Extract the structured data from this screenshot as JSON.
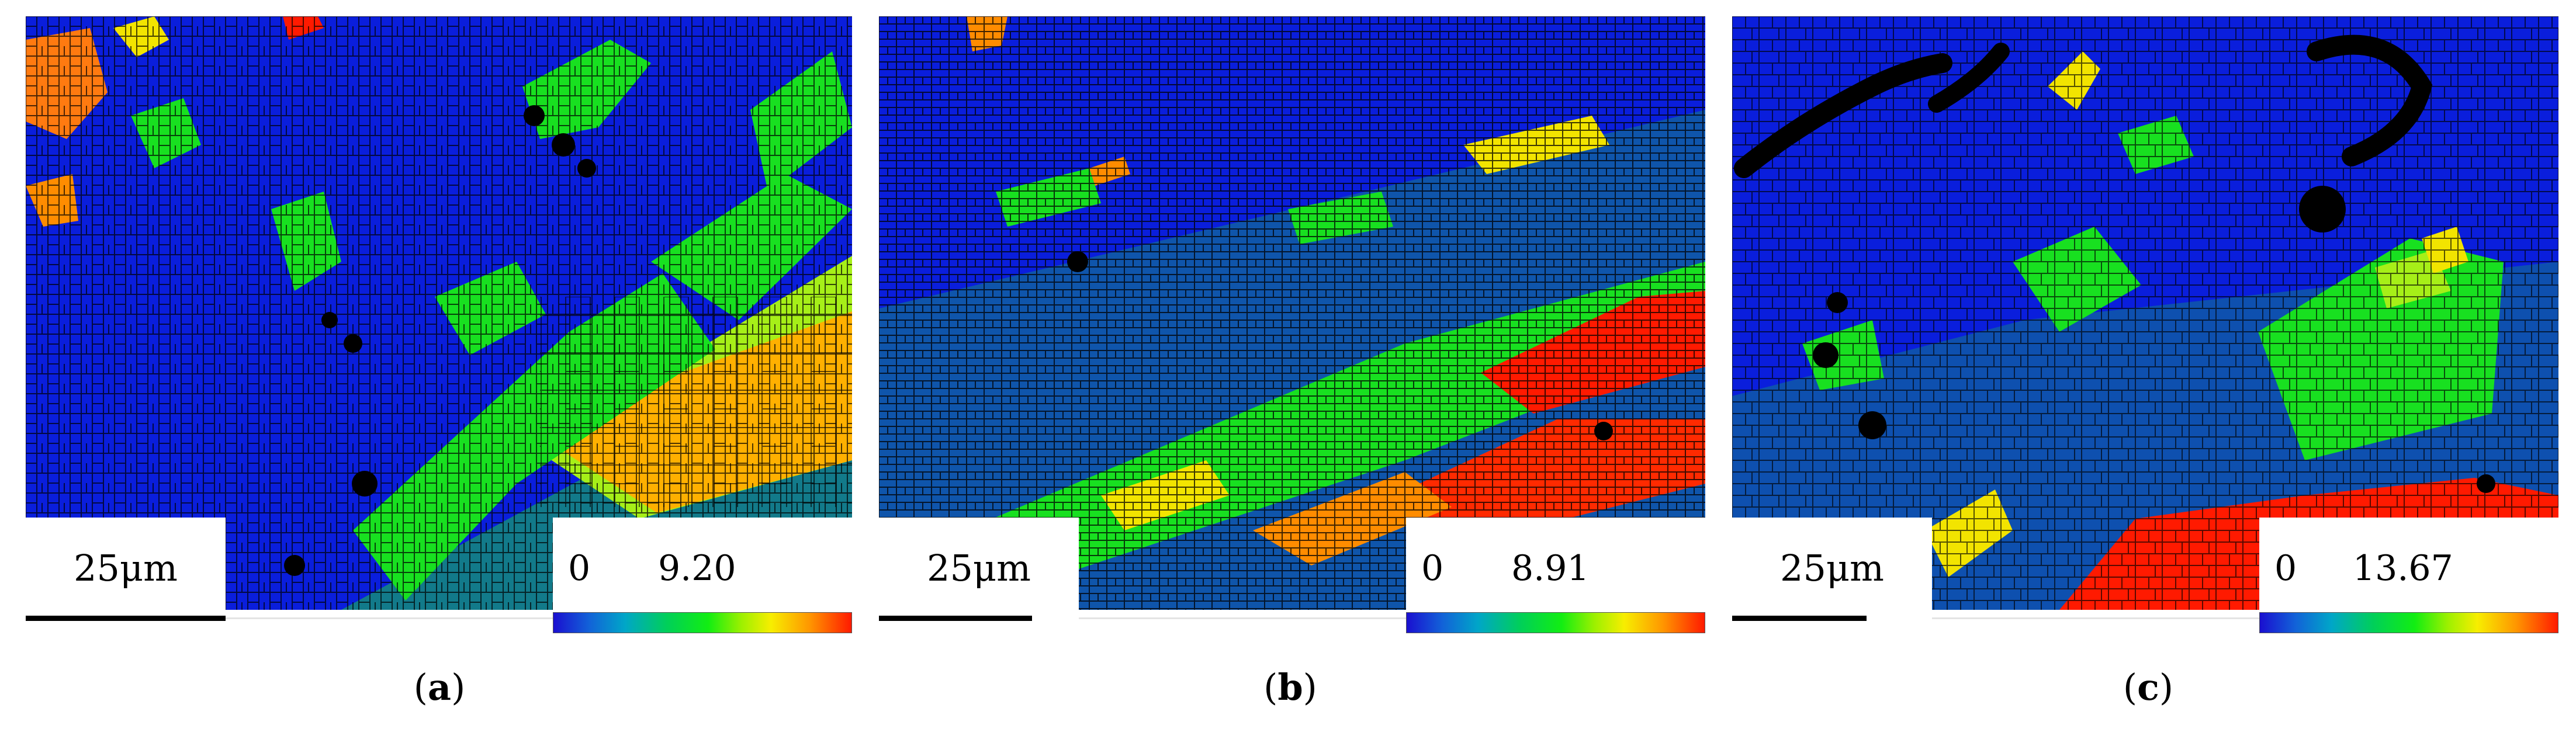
{
  "figure": {
    "panels": [
      {
        "id": "a",
        "scale_label": "25μm",
        "legend_min": "0",
        "legend_max": "9.20",
        "caption_letter": "a"
      },
      {
        "id": "b",
        "scale_label": "25μm",
        "legend_min": "0",
        "legend_max": "8.91",
        "caption_letter": "b"
      },
      {
        "id": "c",
        "scale_label": "25μm",
        "legend_min": "0",
        "legend_max": "13.67",
        "caption_letter": "c"
      }
    ]
  },
  "colors": {
    "blue": "#0a1edc",
    "dark_cyan": "#127a8a",
    "green": "#18e020",
    "yellow_green": "#a6ef18",
    "yellow": "#f2e400",
    "orange": "#ffa800",
    "red": "#ff1a00",
    "black": "#000000"
  }
}
